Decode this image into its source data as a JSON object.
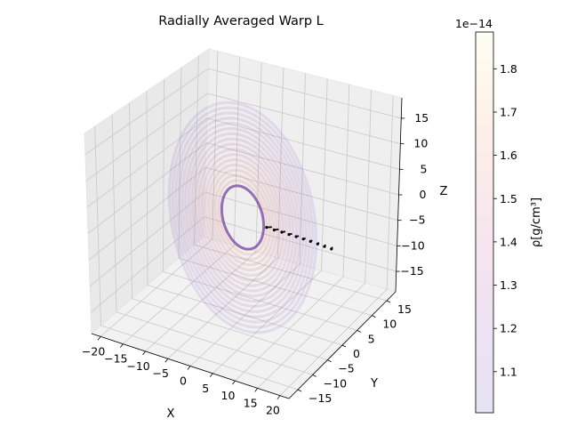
{
  "chart_data": {
    "type": "scatter",
    "projection": "3d",
    "title": "Radially Averaged Warp L",
    "xlabel": "X",
    "ylabel": "Y",
    "zlabel": "Z",
    "xticks": [
      -20,
      -15,
      -10,
      -5,
      0,
      5,
      10,
      15,
      20
    ],
    "yticks": [
      -15,
      -10,
      -5,
      0,
      5,
      10,
      15
    ],
    "zticks": [
      15,
      10,
      5,
      0,
      -5,
      -10,
      -15
    ],
    "xlim": [
      -22,
      22
    ],
    "ylim": [
      -18,
      18
    ],
    "zlim": [
      -19,
      19
    ],
    "grid": true,
    "disk": {
      "inner_radius": 6,
      "outer_radius": 21,
      "colormap": "plasma",
      "alpha": 0.12
    },
    "angular_momentum_vectors": [
      {
        "r": 6.5,
        "dx": -1.2,
        "dz": -0.4
      },
      {
        "r": 8.0,
        "dx": -1.0,
        "dz": -0.4
      },
      {
        "r": 9.5,
        "dx": -0.8,
        "dz": -0.35
      },
      {
        "r": 11.0,
        "dx": -0.7,
        "dz": -0.35
      },
      {
        "r": 12.5,
        "dx": -0.6,
        "dz": -0.3
      },
      {
        "r": 14.0,
        "dx": -0.5,
        "dz": -0.3
      },
      {
        "r": 15.5,
        "dx": -0.4,
        "dz": -0.3
      },
      {
        "r": 17.0,
        "dx": -0.3,
        "dz": -0.35
      },
      {
        "r": 18.5,
        "dx": -0.3,
        "dz": -0.4
      },
      {
        "r": 20.0,
        "dx": -0.25,
        "dz": -0.45
      }
    ],
    "colorbar": {
      "label": "ρ[g/cm³]",
      "exponent": "1e−14",
      "ticks": [
        1.1,
        1.2,
        1.3,
        1.4,
        1.5,
        1.6,
        1.7,
        1.8
      ],
      "range": [
        1.005,
        1.885
      ],
      "colormap": "plasma",
      "alpha": 0.12
    }
  }
}
